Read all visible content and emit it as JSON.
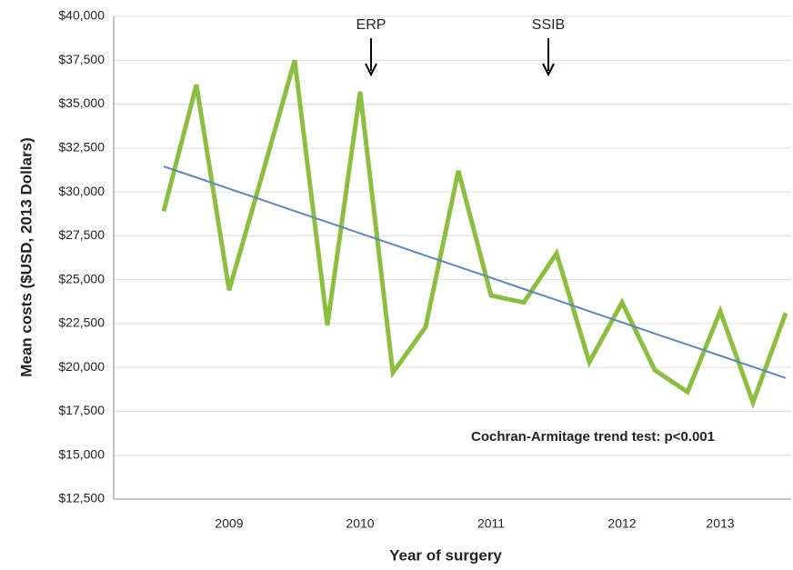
{
  "chart_data": {
    "type": "line",
    "y_label": "Mean costs ($USD, 2013 Dollars)",
    "x_label": "Year of surgery",
    "annotations": [
      "ERP",
      "SSIB"
    ],
    "note": "Cochran-Armitage trend test: p<0.001",
    "categories": [
      null,
      null,
      "2009",
      null,
      null,
      null,
      "2010",
      null,
      null,
      null,
      "2011",
      null,
      null,
      null,
      "2012",
      null,
      null,
      "2013",
      null,
      null
    ],
    "series": [
      {
        "color": "#8cbf3f",
        "values": [
          28900,
          36100,
          24400,
          30900,
          37500,
          22400,
          35700,
          19700,
          22300,
          31200,
          24100,
          23700,
          26500,
          20300,
          23700,
          19850,
          18600,
          23200,
          18000,
          23100
        ]
      },
      {
        "color": "#5b86c4",
        "values": [
          31450,
          30820,
          30180,
          29550,
          28910,
          28280,
          27640,
          27010,
          26370,
          25740,
          25110,
          24470,
          23840,
          23200,
          22570,
          21930,
          21300,
          20670,
          20030,
          19400
        ]
      }
    ],
    "ylim": [
      12500,
      40000
    ],
    "yticks": [
      {
        "value": 12500,
        "label": "$12,500"
      },
      {
        "value": 15000,
        "label": "$15,000"
      },
      {
        "value": 17500,
        "label": "$17,500"
      },
      {
        "value": 20000,
        "label": "$20,000"
      },
      {
        "value": 22500,
        "label": "$22,500"
      },
      {
        "value": 25000,
        "label": "$25,000"
      },
      {
        "value": 27500,
        "label": "$27,500"
      },
      {
        "value": 30000,
        "label": "$30,000"
      },
      {
        "value": 32500,
        "label": "$32,500"
      },
      {
        "value": 35000,
        "label": "$35,000"
      },
      {
        "value": 37500,
        "label": "$37,500"
      },
      {
        "value": 40000,
        "label": "$40,000"
      }
    ],
    "grid": true
  }
}
